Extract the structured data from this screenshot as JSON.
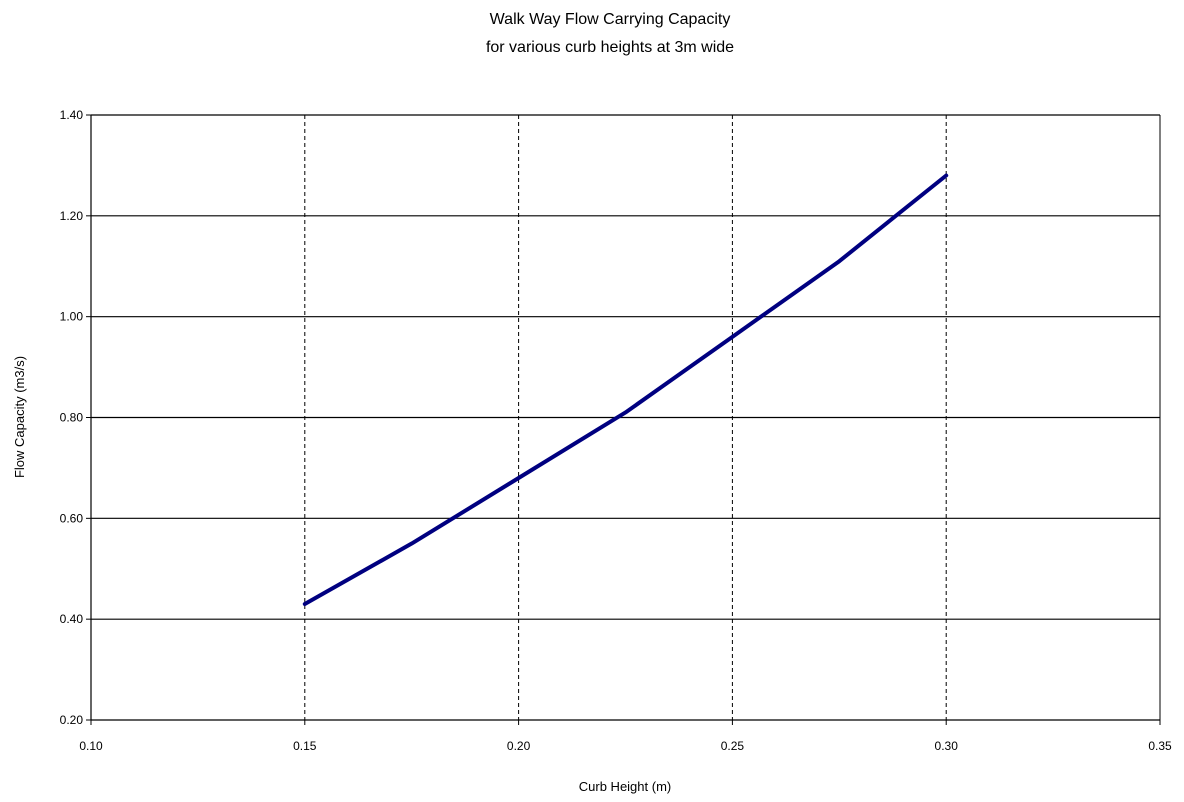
{
  "chart_data": {
    "type": "line",
    "title": "Walk Way Flow Carrying Capacity",
    "subtitle": "for various curb heights at 3m wide",
    "xlabel": "Curb Height (m)",
    "ylabel": "Flow Capacity (m3/s)",
    "xlim": [
      0.1,
      0.35
    ],
    "ylim": [
      0.2,
      1.4
    ],
    "xticks": [
      "0.10",
      "0.15",
      "0.20",
      "0.25",
      "0.30",
      "0.35"
    ],
    "yticks": [
      "0.20",
      "0.40",
      "0.60",
      "0.80",
      "1.00",
      "1.20",
      "1.40"
    ],
    "x_grid": "dashed vertical at x ticks",
    "y_grid": "solid horizontal at y ticks",
    "legend": "none",
    "series": [
      {
        "color": "#000080",
        "x": [
          0.15,
          0.175,
          0.2,
          0.225,
          0.25,
          0.275,
          0.3
        ],
        "y": [
          0.43,
          0.55,
          0.68,
          0.81,
          0.96,
          1.11,
          1.28
        ]
      }
    ]
  }
}
